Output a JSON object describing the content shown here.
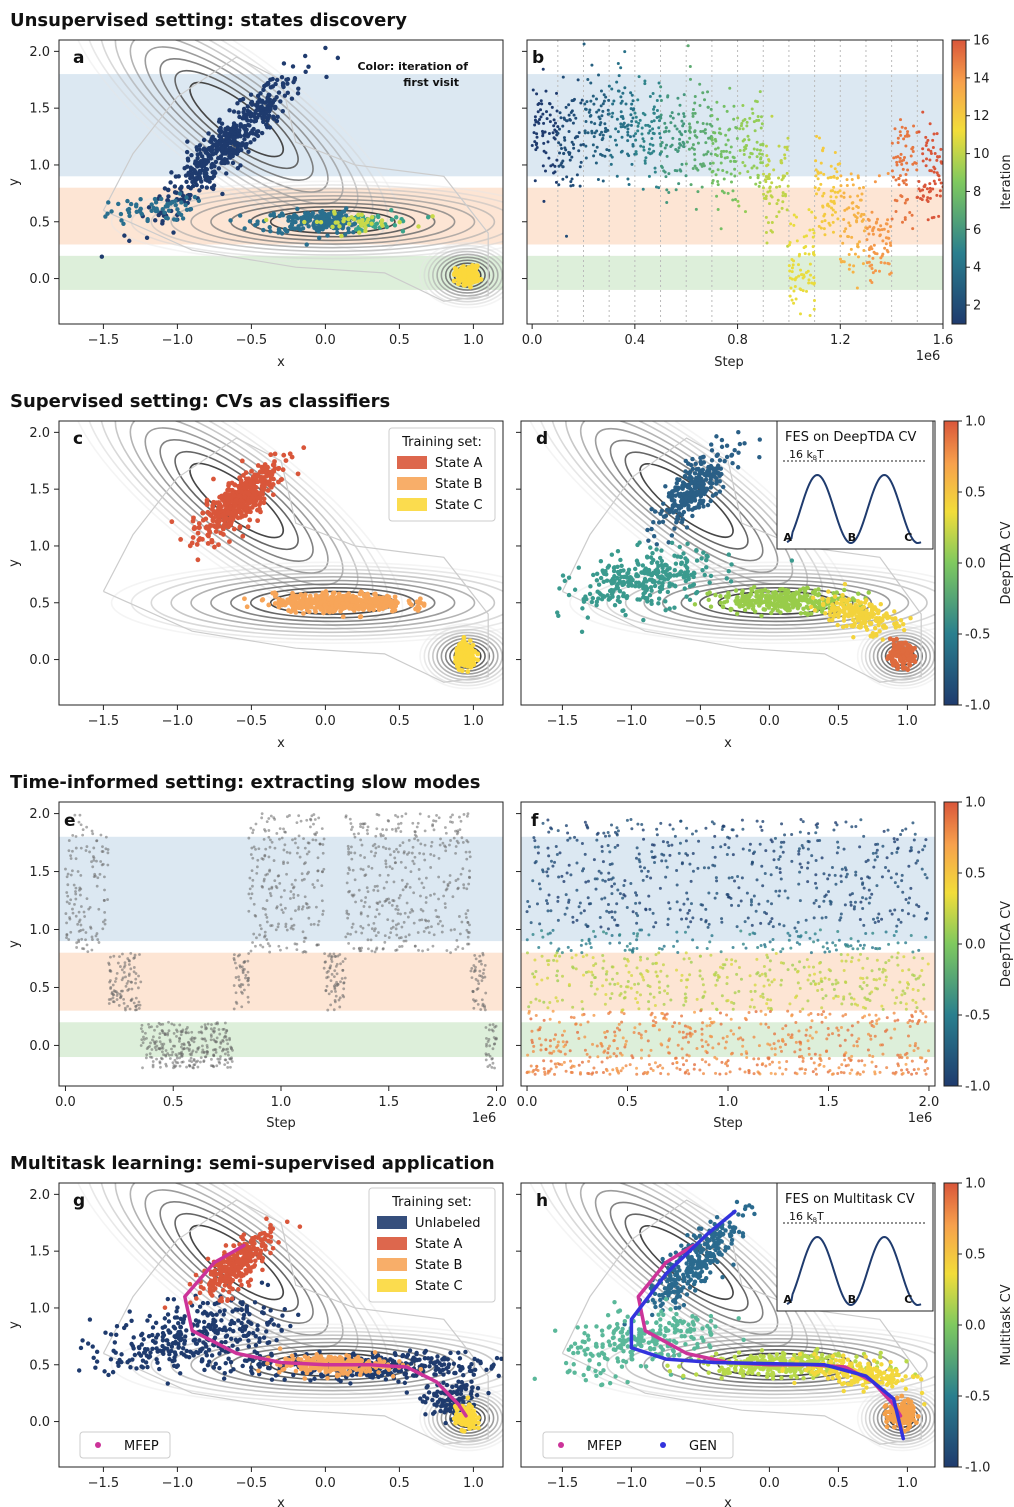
{
  "sections": [
    {
      "title": "Unsupervised setting: states discovery"
    },
    {
      "title": "Supervised setting: CVs as classifiers"
    },
    {
      "title": "Time-informed setting: extracting slow modes"
    },
    {
      "title": "Multitask learning: semi-supervised application"
    }
  ],
  "colors": {
    "state_A": "#d9563a",
    "state_B": "#f7a559",
    "state_C": "#fbd83b",
    "unlabeled": "#1f3b6e",
    "band_blue": "#d6e4f0",
    "band_orange": "#fde0cc",
    "band_green": "#d7ecd3",
    "mfep": "#cc3399",
    "gen": "#3333dd",
    "gray_pts": "#666666"
  },
  "chart_data": [
    {
      "panel": "a",
      "type": "scatter",
      "xlabel": "x",
      "ylabel": "y",
      "xlim": [
        -1.8,
        1.2
      ],
      "ylim": [
        -0.4,
        2.1
      ],
      "xticks": [
        -1.5,
        -1.0,
        -0.5,
        0.0,
        0.5,
        1.0
      ],
      "xtick_labels": [
        "−1.5",
        "−1.0",
        "−0.5",
        "0.0",
        "0.5",
        "1.0"
      ],
      "yticks": [
        0.0,
        0.5,
        1.0,
        1.5,
        2.0
      ],
      "ytick_labels": [
        "0.0",
        "0.5",
        "1.0",
        "1.5",
        "2.0"
      ],
      "annotation_line1": "Color: iteration of",
      "annotation_line2": "first visit",
      "bands": [
        [
          0.9,
          1.8
        ],
        [
          0.3,
          0.8
        ],
        [
          -0.1,
          0.2
        ]
      ]
    },
    {
      "panel": "b",
      "type": "scatter",
      "xlabel": "Step",
      "offset_label": "1e6",
      "xlim": [
        -0.02,
        1.6
      ],
      "ylim": [
        -0.4,
        2.1
      ],
      "xticks": [
        0.0,
        0.4,
        0.8,
        1.2,
        1.6
      ],
      "xtick_labels": [
        "0.0",
        "0.4",
        "0.8",
        "1.2",
        "1.6"
      ],
      "colorbar": {
        "label": "Iteration",
        "min": 1,
        "max": 16,
        "ticks": [
          2,
          4,
          6,
          8,
          10,
          12,
          14,
          16
        ]
      },
      "segments": [
        {
          "iteration": 1,
          "x": [
            0.0,
            0.1
          ],
          "mean": 1.3
        },
        {
          "iteration": 2,
          "x": [
            0.1,
            0.2
          ],
          "mean": 1.2
        },
        {
          "iteration": 3,
          "x": [
            0.2,
            0.3
          ],
          "mean": 1.35
        },
        {
          "iteration": 4,
          "x": [
            0.3,
            0.4
          ],
          "mean": 1.4
        },
        {
          "iteration": 5,
          "x": [
            0.4,
            0.5
          ],
          "mean": 1.35
        },
        {
          "iteration": 6,
          "x": [
            0.5,
            0.6
          ],
          "mean": 1.25
        },
        {
          "iteration": 7,
          "x": [
            0.6,
            0.7
          ],
          "mean": 1.3
        },
        {
          "iteration": 8,
          "x": [
            0.7,
            0.8
          ],
          "mean": 1.1
        },
        {
          "iteration": 9,
          "x": [
            0.8,
            0.9
          ],
          "mean": 1.15
        },
        {
          "iteration": 10,
          "x": [
            0.9,
            1.0
          ],
          "mean": 0.8
        },
        {
          "iteration": 11,
          "x": [
            1.0,
            1.1
          ],
          "mean": 0.1
        },
        {
          "iteration": 12,
          "x": [
            1.1,
            1.2
          ],
          "mean": 0.8
        },
        {
          "iteration": 13,
          "x": [
            1.2,
            1.3
          ],
          "mean": 0.5
        },
        {
          "iteration": 14,
          "x": [
            1.3,
            1.4
          ],
          "mean": 0.3
        },
        {
          "iteration": 15,
          "x": [
            1.4,
            1.5
          ],
          "mean": 1.0
        },
        {
          "iteration": 16,
          "x": [
            1.5,
            1.6
          ],
          "mean": 0.9
        }
      ]
    },
    {
      "panel": "c",
      "type": "scatter",
      "xlabel": "x",
      "ylabel": "y",
      "xlim": [
        -1.8,
        1.2
      ],
      "ylim": [
        -0.4,
        2.1
      ],
      "legend": {
        "title": "Training set:",
        "entries": [
          "State A",
          "State B",
          "State C"
        ],
        "position": "top-right"
      },
      "clusters": [
        {
          "name": "State A",
          "center": [
            -0.6,
            1.35
          ]
        },
        {
          "name": "State B",
          "center": [
            0.1,
            0.5
          ]
        },
        {
          "name": "State C",
          "center": [
            0.95,
            0.03
          ]
        }
      ]
    },
    {
      "panel": "d",
      "type": "scatter",
      "xlabel": "x",
      "xlim": [
        -1.8,
        1.2
      ],
      "ylim": [
        -0.4,
        2.1
      ],
      "colorbar": {
        "label": "DeepTDA CV",
        "min": -1.0,
        "max": 1.0,
        "ticks": [
          1.0,
          0.5,
          0.0,
          -0.5,
          -1.0
        ],
        "tick_labels": [
          "1.0",
          "0.5",
          "0.0",
          "-0.5",
          "-1.0"
        ]
      },
      "inset": {
        "title": "FES on DeepTDA CV",
        "level_label": "16 k",
        "level_sub": "B",
        "level_suffix": "T",
        "states": [
          "A",
          "B",
          "C"
        ]
      }
    },
    {
      "panel": "e",
      "type": "scatter",
      "xlabel": "Step",
      "ylabel": "y",
      "offset_label": "1e6",
      "xlim": [
        -0.03,
        2.03
      ],
      "ylim": [
        -0.35,
        2.1
      ],
      "xticks": [
        0.0,
        0.5,
        1.0,
        1.5,
        2.0
      ],
      "xtick_labels": [
        "0.0",
        "0.5",
        "1.0",
        "1.5",
        "2.0"
      ],
      "yticks": [
        0.0,
        0.5,
        1.0,
        1.5,
        2.0
      ],
      "ytick_labels": [
        "0.0",
        "0.5",
        "1.0",
        "1.5",
        "2.0"
      ],
      "trajectory_states": [
        {
          "x": [
            0.0,
            0.2
          ],
          "state": "A"
        },
        {
          "x": [
            0.2,
            0.35
          ],
          "state": "B"
        },
        {
          "x": [
            0.35,
            0.78
          ],
          "state": "C"
        },
        {
          "x": [
            0.78,
            0.85
          ],
          "state": "B"
        },
        {
          "x": [
            0.85,
            1.2
          ],
          "state": "A"
        },
        {
          "x": [
            1.2,
            1.3
          ],
          "state": "B"
        },
        {
          "x": [
            1.3,
            1.88
          ],
          "state": "A"
        },
        {
          "x": [
            1.88,
            1.95
          ],
          "state": "B"
        },
        {
          "x": [
            1.95,
            2.0
          ],
          "state": "C"
        }
      ]
    },
    {
      "panel": "f",
      "type": "scatter",
      "xlabel": "Step",
      "offset_label": "1e6",
      "xlim": [
        -0.03,
        2.03
      ],
      "ylim": [
        -0.35,
        2.1
      ],
      "xticks": [
        0.0,
        0.5,
        1.0,
        1.5,
        2.0
      ],
      "xtick_labels": [
        "0.0",
        "0.5",
        "1.0",
        "1.5",
        "2.0"
      ],
      "colorbar": {
        "label": "DeepTICA CV",
        "min": -1.0,
        "max": 1.0,
        "ticks": [
          1.0,
          0.5,
          0.0,
          -0.5,
          -1.0
        ],
        "tick_labels": [
          "1.0",
          "0.5",
          "0.0",
          "-0.5",
          "-1.0"
        ]
      }
    },
    {
      "panel": "g",
      "type": "scatter",
      "xlabel": "x",
      "ylabel": "y",
      "xlim": [
        -1.8,
        1.2
      ],
      "ylim": [
        -0.4,
        2.1
      ],
      "legend": {
        "title": "Training set:",
        "entries": [
          "Unlabeled",
          "State A",
          "State B",
          "State C"
        ],
        "position": "top-right"
      },
      "legend2": {
        "entries": [
          "MFEP"
        ],
        "position": "bottom-left"
      },
      "mfep_path": {
        "x": [
          -0.55,
          -0.75,
          -0.95,
          -0.9,
          -0.6,
          -0.3,
          0.0,
          0.3,
          0.55,
          0.75,
          0.9,
          0.95
        ],
        "y": [
          1.55,
          1.4,
          1.1,
          0.8,
          0.6,
          0.52,
          0.5,
          0.5,
          0.48,
          0.35,
          0.15,
          0.05
        ]
      }
    },
    {
      "panel": "h",
      "type": "scatter",
      "xlabel": "x",
      "xlim": [
        -1.8,
        1.2
      ],
      "ylim": [
        -0.4,
        2.1
      ],
      "colorbar": {
        "label": "Multitask CV",
        "min": -1.0,
        "max": 1.0,
        "ticks": [
          1.0,
          0.5,
          0.0,
          -0.5,
          -1.0
        ],
        "tick_labels": [
          "1.0",
          "0.5",
          "0.0",
          "-0.5",
          "-1.0"
        ]
      },
      "legend2": {
        "entries": [
          "MFEP",
          "GEN"
        ],
        "position": "bottom-left"
      },
      "inset": {
        "title": "FES on Multitask CV",
        "level_label": "16 k",
        "level_sub": "B",
        "level_suffix": "T",
        "states": [
          "A",
          "B",
          "C"
        ]
      },
      "gen_path": {
        "x": [
          -0.25,
          -0.45,
          -0.75,
          -1.0,
          -1.0,
          -0.75,
          -0.4,
          0.0,
          0.4,
          0.7,
          0.9,
          0.97
        ],
        "y": [
          1.85,
          1.65,
          1.3,
          0.9,
          0.65,
          0.55,
          0.52,
          0.51,
          0.5,
          0.4,
          0.2,
          -0.15
        ]
      }
    }
  ]
}
